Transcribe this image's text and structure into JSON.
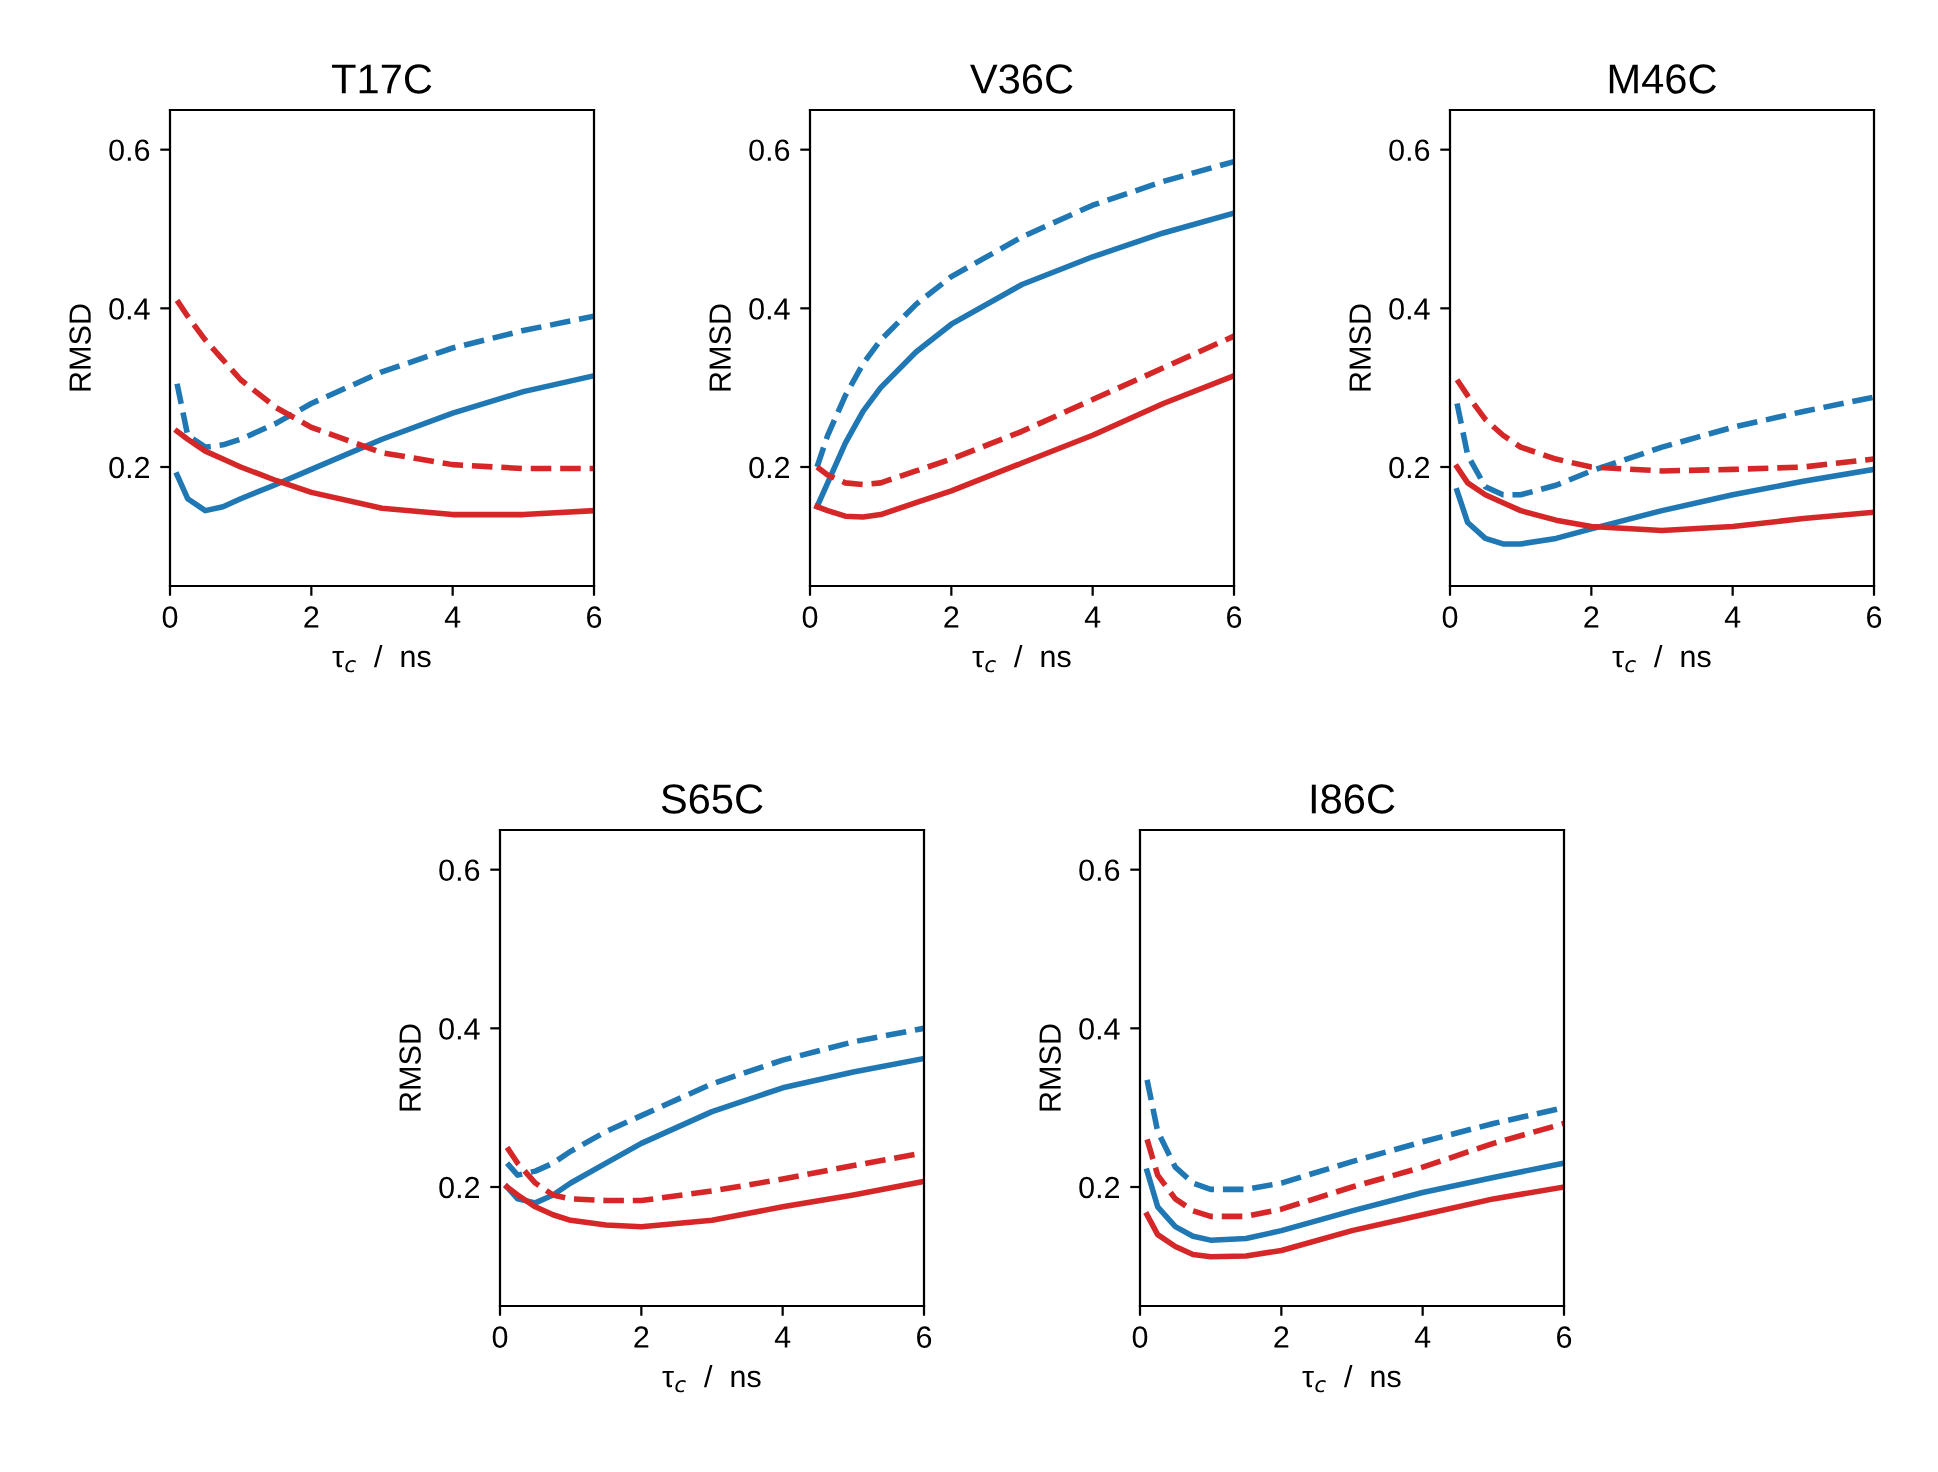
{
  "chart_data": [
    {
      "type": "line",
      "title": "T17C",
      "xlabel": "τ$_{c}$  /  ns",
      "ylabel": "RMSD",
      "xlim": [
        0,
        6
      ],
      "ylim": [
        0.05,
        0.65
      ],
      "xticks": [
        0,
        2,
        4,
        6
      ],
      "yticks": [
        0.2,
        0.4,
        0.6
      ],
      "x": [
        0.1,
        0.25,
        0.5,
        0.75,
        1,
        1.5,
        2,
        3,
        4,
        5,
        6
      ],
      "series": [
        {
          "color": "#1f77b4",
          "line_style": "solid",
          "values": [
            0.19,
            0.16,
            0.145,
            0.15,
            0.16,
            0.178,
            0.197,
            0.235,
            0.268,
            0.295,
            0.315
          ]
        },
        {
          "color": "#1f77b4",
          "line_style": "dashed",
          "values": [
            0.305,
            0.24,
            0.225,
            0.228,
            0.235,
            0.255,
            0.28,
            0.32,
            0.35,
            0.372,
            0.39
          ]
        },
        {
          "color": "#d62728",
          "line_style": "solid",
          "values": [
            0.245,
            0.235,
            0.22,
            0.21,
            0.2,
            0.183,
            0.168,
            0.148,
            0.14,
            0.14,
            0.145
          ]
        },
        {
          "color": "#d62728",
          "line_style": "dashed",
          "values": [
            0.41,
            0.39,
            0.36,
            0.335,
            0.31,
            0.275,
            0.25,
            0.218,
            0.203,
            0.198,
            0.198
          ]
        }
      ]
    },
    {
      "type": "line",
      "title": "V36C",
      "xlabel": "τ$_{c}$  /  ns",
      "ylabel": "RMSD",
      "xlim": [
        0,
        6
      ],
      "ylim": [
        0.05,
        0.65
      ],
      "xticks": [
        0,
        2,
        4,
        6
      ],
      "yticks": [
        0.2,
        0.4,
        0.6
      ],
      "x": [
        0.1,
        0.25,
        0.5,
        0.75,
        1,
        1.5,
        2,
        3,
        4,
        5,
        6
      ],
      "series": [
        {
          "color": "#1f77b4",
          "line_style": "solid",
          "values": [
            0.15,
            0.18,
            0.23,
            0.27,
            0.3,
            0.345,
            0.38,
            0.43,
            0.465,
            0.495,
            0.52
          ]
        },
        {
          "color": "#1f77b4",
          "line_style": "dashed",
          "values": [
            0.2,
            0.24,
            0.29,
            0.33,
            0.36,
            0.405,
            0.44,
            0.49,
            0.53,
            0.56,
            0.585
          ]
        },
        {
          "color": "#d62728",
          "line_style": "solid",
          "values": [
            0.15,
            0.145,
            0.138,
            0.137,
            0.14,
            0.155,
            0.17,
            0.205,
            0.24,
            0.28,
            0.315
          ]
        },
        {
          "color": "#d62728",
          "line_style": "dashed",
          "values": [
            0.2,
            0.19,
            0.18,
            0.178,
            0.18,
            0.195,
            0.21,
            0.245,
            0.285,
            0.325,
            0.365
          ]
        }
      ]
    },
    {
      "type": "line",
      "title": "M46C",
      "xlabel": "τ$_{c}$  /  ns",
      "ylabel": "RMSD",
      "xlim": [
        0,
        6
      ],
      "ylim": [
        0.05,
        0.65
      ],
      "xticks": [
        0,
        2,
        4,
        6
      ],
      "yticks": [
        0.2,
        0.4,
        0.6
      ],
      "x": [
        0.1,
        0.25,
        0.5,
        0.75,
        1,
        1.5,
        2,
        3,
        4,
        5,
        6
      ],
      "series": [
        {
          "color": "#1f77b4",
          "line_style": "solid",
          "values": [
            0.17,
            0.13,
            0.11,
            0.103,
            0.103,
            0.11,
            0.122,
            0.145,
            0.165,
            0.182,
            0.197
          ]
        },
        {
          "color": "#1f77b4",
          "line_style": "dashed",
          "values": [
            0.28,
            0.215,
            0.175,
            0.165,
            0.165,
            0.177,
            0.195,
            0.225,
            0.25,
            0.27,
            0.288
          ]
        },
        {
          "color": "#d62728",
          "line_style": "solid",
          "values": [
            0.2,
            0.18,
            0.165,
            0.155,
            0.145,
            0.133,
            0.125,
            0.12,
            0.125,
            0.135,
            0.143
          ]
        },
        {
          "color": "#d62728",
          "line_style": "dashed",
          "values": [
            0.31,
            0.29,
            0.26,
            0.24,
            0.225,
            0.21,
            0.2,
            0.195,
            0.197,
            0.2,
            0.21
          ]
        }
      ]
    },
    {
      "type": "line",
      "title": "S65C",
      "xlabel": "τ$_{c}$  /  ns",
      "ylabel": "RMSD",
      "xlim": [
        0,
        6
      ],
      "ylim": [
        0.05,
        0.65
      ],
      "xticks": [
        0,
        2,
        4,
        6
      ],
      "yticks": [
        0.2,
        0.4,
        0.6
      ],
      "x": [
        0.1,
        0.25,
        0.5,
        0.75,
        1,
        1.5,
        2,
        3,
        4,
        5,
        6
      ],
      "series": [
        {
          "color": "#1f77b4",
          "line_style": "solid",
          "values": [
            0.2,
            0.185,
            0.18,
            0.19,
            0.205,
            0.23,
            0.255,
            0.295,
            0.325,
            0.345,
            0.362
          ]
        },
        {
          "color": "#1f77b4",
          "line_style": "dashed",
          "values": [
            0.23,
            0.215,
            0.22,
            0.23,
            0.245,
            0.27,
            0.29,
            0.33,
            0.36,
            0.383,
            0.4
          ]
        },
        {
          "color": "#d62728",
          "line_style": "solid",
          "values": [
            0.2,
            0.19,
            0.175,
            0.165,
            0.158,
            0.152,
            0.15,
            0.158,
            0.175,
            0.19,
            0.207
          ]
        },
        {
          "color": "#d62728",
          "line_style": "dashed",
          "values": [
            0.25,
            0.23,
            0.205,
            0.19,
            0.185,
            0.183,
            0.183,
            0.195,
            0.21,
            0.227,
            0.243
          ]
        }
      ]
    },
    {
      "type": "line",
      "title": "I86C",
      "xlabel": "τ$_{c}$  /  ns",
      "ylabel": "RMSD",
      "xlim": [
        0,
        6
      ],
      "ylim": [
        0.05,
        0.65
      ],
      "xticks": [
        0,
        2,
        4,
        6
      ],
      "yticks": [
        0.2,
        0.4,
        0.6
      ],
      "x": [
        0.1,
        0.25,
        0.5,
        0.75,
        1,
        1.5,
        2,
        3,
        4,
        5,
        6
      ],
      "series": [
        {
          "color": "#1f77b4",
          "line_style": "solid",
          "values": [
            0.22,
            0.175,
            0.15,
            0.138,
            0.133,
            0.135,
            0.145,
            0.17,
            0.193,
            0.212,
            0.23
          ]
        },
        {
          "color": "#1f77b4",
          "line_style": "dashed",
          "values": [
            0.335,
            0.27,
            0.225,
            0.205,
            0.197,
            0.197,
            0.205,
            0.232,
            0.257,
            0.28,
            0.3
          ]
        },
        {
          "color": "#d62728",
          "line_style": "solid",
          "values": [
            0.165,
            0.14,
            0.125,
            0.115,
            0.112,
            0.113,
            0.12,
            0.145,
            0.165,
            0.185,
            0.2
          ]
        },
        {
          "color": "#d62728",
          "line_style": "dashed",
          "values": [
            0.26,
            0.215,
            0.185,
            0.17,
            0.163,
            0.163,
            0.172,
            0.2,
            0.225,
            0.255,
            0.28
          ]
        }
      ]
    }
  ]
}
